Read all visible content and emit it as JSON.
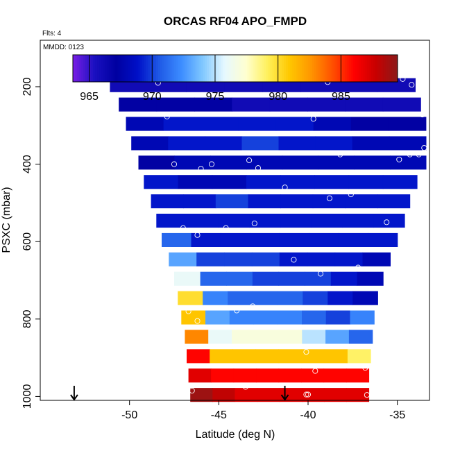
{
  "chart_data": {
    "type": "heatmap",
    "title": "ORCAS RF04 APO_FMPD",
    "annotations": [
      "Flts: 4",
      "MMDD: 0123"
    ],
    "xlabel": "Latitude (deg N)",
    "ylabel": "PSXC (mbar)",
    "xlim": [
      -55,
      -33.2
    ],
    "ylim_reversed": [
      1010,
      80
    ],
    "xticks": [
      -50,
      -45,
      -40,
      -35
    ],
    "yticks": [
      200,
      400,
      600,
      800,
      1000
    ],
    "colorbar": {
      "min": 963.7,
      "max": 989.5,
      "ticks": [
        965,
        970,
        975,
        980,
        985
      ],
      "colors": [
        "#7a1ee6",
        "#1a10c0",
        "#0000a0",
        "#0010c8",
        "#1f5ae6",
        "#3c8cff",
        "#80c8ff",
        "#e6f8ff",
        "#ffffd0",
        "#fff05a",
        "#ffc800",
        "#ff9600",
        "#ff5000",
        "#ff0000",
        "#c80000",
        "#8b1a1a"
      ]
    },
    "pressure_bands": [
      {
        "p": 190,
        "lat_min": -51.1,
        "lat_max": -34.0,
        "values": [
          966,
          966,
          966,
          966,
          966,
          966,
          966,
          966
        ]
      },
      {
        "p": 240,
        "lat_min": -50.6,
        "lat_max": -33.7,
        "values": [
          967,
          967,
          967,
          966,
          966,
          966,
          966,
          966
        ]
      },
      {
        "p": 290,
        "lat_min": -50.2,
        "lat_max": -33.4,
        "values": [
          968,
          969,
          969,
          969,
          969,
          968,
          967,
          967
        ]
      },
      {
        "p": 340,
        "lat_min": -49.9,
        "lat_max": -33.4,
        "values": [
          968,
          969,
          969,
          970,
          969,
          969,
          968,
          968
        ]
      },
      {
        "p": 390,
        "lat_min": -49.5,
        "lat_max": -33.4,
        "values": [
          967,
          968,
          968,
          968,
          968,
          968,
          968,
          968
        ]
      },
      {
        "p": 440,
        "lat_min": -49.2,
        "lat_max": -33.9,
        "values": [
          969,
          968,
          968,
          969,
          969,
          969,
          969,
          969
        ]
      },
      {
        "p": 490,
        "lat_min": -48.8,
        "lat_max": -34.3,
        "values": [
          969,
          969,
          970,
          969,
          969,
          969,
          969,
          969
        ]
      },
      {
        "p": 540,
        "lat_min": -48.5,
        "lat_max": -34.6,
        "values": [
          969,
          969,
          969,
          969,
          969,
          969,
          969,
          969
        ]
      },
      {
        "p": 590,
        "lat_min": -48.2,
        "lat_max": -35.0,
        "values": [
          971,
          969,
          969,
          969,
          969,
          969,
          969,
          969
        ]
      },
      {
        "p": 640,
        "lat_min": -47.8,
        "lat_max": -35.4,
        "values": [
          973,
          970,
          970,
          970,
          969,
          969,
          969,
          968
        ]
      },
      {
        "p": 690,
        "lat_min": -47.5,
        "lat_max": -35.8,
        "values": [
          976,
          971,
          971,
          970,
          970,
          970,
          969,
          968
        ]
      },
      {
        "p": 740,
        "lat_min": -47.3,
        "lat_max": -36.1,
        "values": [
          980,
          972,
          971,
          971,
          971,
          970,
          969,
          968
        ]
      },
      {
        "p": 790,
        "lat_min": -47.1,
        "lat_max": -36.3,
        "values": [
          981,
          973,
          972,
          972,
          972,
          971,
          970,
          972
        ]
      },
      {
        "p": 840,
        "lat_min": -46.9,
        "lat_max": -36.4,
        "values": [
          983,
          976,
          977,
          977,
          977,
          975,
          973,
          971
        ]
      },
      {
        "p": 890,
        "lat_min": -46.8,
        "lat_max": -36.5,
        "values": [
          986,
          981,
          981,
          981,
          981,
          981,
          981,
          979
        ]
      },
      {
        "p": 940,
        "lat_min": -46.7,
        "lat_max": -36.6,
        "values": [
          987,
          986,
          986,
          986,
          986,
          986,
          986,
          986
        ]
      },
      {
        "p": 990,
        "lat_min": -46.6,
        "lat_max": -36.6,
        "values": [
          989,
          988,
          987,
          987,
          987,
          987,
          987,
          987
        ]
      }
    ],
    "sample_points": [
      [
        -50.9,
        180
      ],
      [
        -50.4,
        180
      ],
      [
        -50.0,
        180
      ],
      [
        -49.6,
        180
      ],
      [
        -49.2,
        180
      ],
      [
        -48.6,
        180
      ],
      [
        -48.4,
        190
      ],
      [
        -38.9,
        188
      ],
      [
        -38.3,
        180
      ],
      [
        -37.7,
        180
      ],
      [
        -37.1,
        180
      ],
      [
        -36.5,
        180
      ],
      [
        -35.9,
        180
      ],
      [
        -35.3,
        180
      ],
      [
        -34.7,
        180
      ],
      [
        -34.2,
        195
      ],
      [
        -33.6,
        272
      ],
      [
        -47.9,
        277
      ],
      [
        -39.7,
        283
      ],
      [
        -47.5,
        400
      ],
      [
        -46.0,
        412
      ],
      [
        -45.4,
        400
      ],
      [
        -43.3,
        390
      ],
      [
        -42.8,
        410
      ],
      [
        -41.3,
        460
      ],
      [
        -38.2,
        375
      ],
      [
        -34.9,
        388
      ],
      [
        -34.3,
        375
      ],
      [
        -33.8,
        375
      ],
      [
        -33.5,
        358
      ],
      [
        -38.8,
        488
      ],
      [
        -37.6,
        478
      ],
      [
        -35.6,
        550
      ],
      [
        -47.0,
        565
      ],
      [
        -46.2,
        583
      ],
      [
        -44.6,
        565
      ],
      [
        -43.0,
        553
      ],
      [
        -40.8,
        647
      ],
      [
        -39.3,
        683
      ],
      [
        -37.2,
        667
      ],
      [
        -46.7,
        780
      ],
      [
        -46.2,
        805
      ],
      [
        -44.0,
        778
      ],
      [
        -43.1,
        767
      ],
      [
        -35.9,
        765
      ],
      [
        -40.1,
        885
      ],
      [
        -39.6,
        934
      ],
      [
        -36.8,
        926
      ],
      [
        -46.5,
        985
      ],
      [
        -43.5,
        975
      ],
      [
        -40.1,
        995
      ],
      [
        -40.0,
        995
      ],
      [
        -36.7,
        996
      ]
    ],
    "arrows_lat": [
      -53.1,
      -41.3
    ]
  }
}
